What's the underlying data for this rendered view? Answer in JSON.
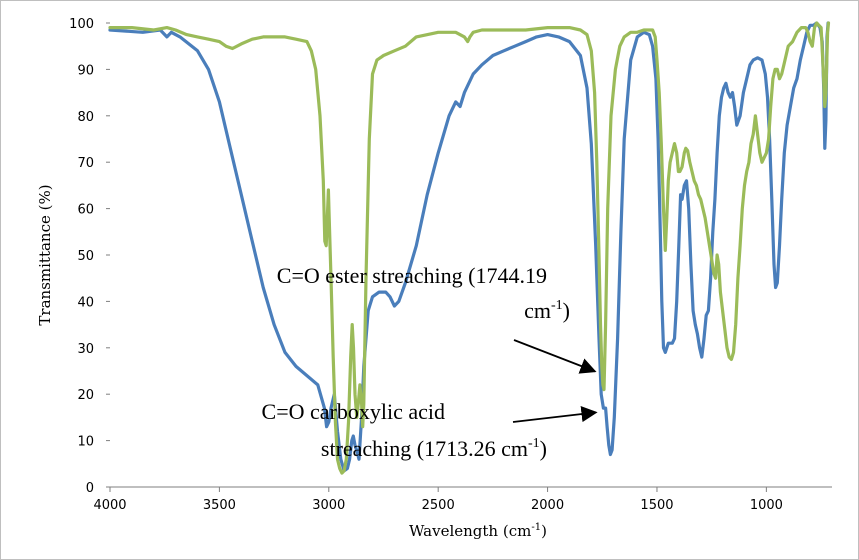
{
  "chart_data": {
    "type": "line",
    "title": "",
    "xlabel": "Wavelength (cm",
    "xlabel_sup": "-1",
    "xlabel_tail": ")",
    "ylabel": "Transmittance (%)",
    "xlim": [
      4000,
      700
    ],
    "ylim": [
      0,
      100
    ],
    "x_ticks": [
      4000,
      3500,
      3000,
      2500,
      2000,
      1500,
      1000
    ],
    "y_ticks": [
      0,
      10,
      20,
      30,
      40,
      50,
      60,
      70,
      80,
      90,
      100
    ],
    "grid": "none",
    "legend": "none",
    "series": [
      {
        "color": "#4a7ebb",
        "points": [
          [
            4000,
            98.5
          ],
          [
            3850,
            98
          ],
          [
            3770,
            98.5
          ],
          [
            3740,
            97
          ],
          [
            3720,
            98
          ],
          [
            3680,
            97
          ],
          [
            3600,
            94
          ],
          [
            3550,
            90
          ],
          [
            3500,
            83
          ],
          [
            3450,
            73
          ],
          [
            3400,
            63
          ],
          [
            3350,
            53
          ],
          [
            3300,
            43
          ],
          [
            3250,
            35
          ],
          [
            3200,
            29
          ],
          [
            3150,
            26
          ],
          [
            3100,
            24
          ],
          [
            3050,
            22
          ],
          [
            3020,
            17
          ],
          [
            3010,
            13
          ],
          [
            3000,
            14
          ],
          [
            2990,
            17
          ],
          [
            2975,
            20
          ],
          [
            2960,
            12
          ],
          [
            2945,
            6
          ],
          [
            2930,
            3.5
          ],
          [
            2915,
            4
          ],
          [
            2905,
            6
          ],
          [
            2895,
            10
          ],
          [
            2888,
            11
          ],
          [
            2880,
            9
          ],
          [
            2870,
            7.5
          ],
          [
            2862,
            6
          ],
          [
            2850,
            15
          ],
          [
            2840,
            26
          ],
          [
            2820,
            38
          ],
          [
            2800,
            41
          ],
          [
            2770,
            42
          ],
          [
            2740,
            42
          ],
          [
            2720,
            41
          ],
          [
            2700,
            39
          ],
          [
            2680,
            40
          ],
          [
            2650,
            44
          ],
          [
            2600,
            52
          ],
          [
            2550,
            63
          ],
          [
            2500,
            72
          ],
          [
            2450,
            80
          ],
          [
            2420,
            83
          ],
          [
            2400,
            82
          ],
          [
            2380,
            85
          ],
          [
            2340,
            89
          ],
          [
            2300,
            91
          ],
          [
            2250,
            93
          ],
          [
            2200,
            94
          ],
          [
            2150,
            95
          ],
          [
            2100,
            96
          ],
          [
            2050,
            97
          ],
          [
            2000,
            97.5
          ],
          [
            1950,
            97
          ],
          [
            1900,
            96
          ],
          [
            1850,
            93
          ],
          [
            1820,
            86
          ],
          [
            1800,
            74
          ],
          [
            1780,
            52
          ],
          [
            1765,
            32
          ],
          [
            1755,
            20
          ],
          [
            1745,
            17
          ],
          [
            1735,
            17
          ],
          [
            1728,
            13
          ],
          [
            1720,
            9
          ],
          [
            1713,
            7
          ],
          [
            1705,
            8
          ],
          [
            1695,
            15
          ],
          [
            1680,
            32
          ],
          [
            1665,
            55
          ],
          [
            1650,
            75
          ],
          [
            1620,
            92
          ],
          [
            1590,
            97
          ],
          [
            1560,
            98
          ],
          [
            1535,
            97.5
          ],
          [
            1520,
            95
          ],
          [
            1505,
            88
          ],
          [
            1495,
            75
          ],
          [
            1485,
            55
          ],
          [
            1478,
            40
          ],
          [
            1470,
            30
          ],
          [
            1462,
            29
          ],
          [
            1455,
            30
          ],
          [
            1448,
            31
          ],
          [
            1440,
            31
          ],
          [
            1430,
            31
          ],
          [
            1420,
            32
          ],
          [
            1410,
            40
          ],
          [
            1400,
            52
          ],
          [
            1392,
            63
          ],
          [
            1385,
            62
          ],
          [
            1375,
            65
          ],
          [
            1365,
            66
          ],
          [
            1355,
            60
          ],
          [
            1345,
            48
          ],
          [
            1335,
            38
          ],
          [
            1325,
            35
          ],
          [
            1315,
            33
          ],
          [
            1305,
            30
          ],
          [
            1295,
            28
          ],
          [
            1285,
            32
          ],
          [
            1275,
            37
          ],
          [
            1265,
            38
          ],
          [
            1255,
            45
          ],
          [
            1245,
            55
          ],
          [
            1235,
            62
          ],
          [
            1225,
            72
          ],
          [
            1215,
            80
          ],
          [
            1205,
            84
          ],
          [
            1195,
            86
          ],
          [
            1185,
            87
          ],
          [
            1175,
            85
          ],
          [
            1165,
            84
          ],
          [
            1155,
            85
          ],
          [
            1145,
            82
          ],
          [
            1135,
            78
          ],
          [
            1120,
            80
          ],
          [
            1105,
            85
          ],
          [
            1090,
            88
          ],
          [
            1075,
            91
          ],
          [
            1060,
            92
          ],
          [
            1040,
            92.5
          ],
          [
            1020,
            92
          ],
          [
            1005,
            89
          ],
          [
            995,
            84
          ],
          [
            985,
            75
          ],
          [
            975,
            62
          ],
          [
            965,
            48
          ],
          [
            958,
            43
          ],
          [
            950,
            44
          ],
          [
            940,
            52
          ],
          [
            930,
            62
          ],
          [
            918,
            72
          ],
          [
            905,
            78
          ],
          [
            890,
            82
          ],
          [
            875,
            86
          ],
          [
            860,
            88
          ],
          [
            845,
            92
          ],
          [
            830,
            95
          ],
          [
            815,
            98
          ],
          [
            800,
            99.5
          ],
          [
            785,
            99.5
          ],
          [
            770,
            100
          ],
          [
            755,
            99
          ],
          [
            745,
            96
          ],
          [
            738,
            86
          ],
          [
            733,
            73
          ],
          [
            728,
            79
          ],
          [
            723,
            97
          ],
          [
            718,
            100
          ]
        ]
      },
      {
        "color": "#9bbb59",
        "points": [
          [
            4000,
            99
          ],
          [
            3900,
            99
          ],
          [
            3800,
            98.5
          ],
          [
            3740,
            99
          ],
          [
            3700,
            98.5
          ],
          [
            3650,
            97.5
          ],
          [
            3600,
            97
          ],
          [
            3550,
            96.5
          ],
          [
            3500,
            96
          ],
          [
            3470,
            95
          ],
          [
            3440,
            94.5
          ],
          [
            3400,
            95.5
          ],
          [
            3350,
            96.5
          ],
          [
            3300,
            97
          ],
          [
            3250,
            97
          ],
          [
            3200,
            97
          ],
          [
            3150,
            96.5
          ],
          [
            3100,
            96
          ],
          [
            3080,
            94
          ],
          [
            3060,
            90
          ],
          [
            3040,
            80
          ],
          [
            3025,
            66
          ],
          [
            3018,
            53
          ],
          [
            3012,
            52
          ],
          [
            3007,
            58
          ],
          [
            3002,
            64
          ],
          [
            2998,
            58
          ],
          [
            2990,
            45
          ],
          [
            2980,
            28
          ],
          [
            2970,
            14
          ],
          [
            2960,
            6
          ],
          [
            2950,
            4
          ],
          [
            2940,
            3
          ],
          [
            2930,
            3.5
          ],
          [
            2920,
            6
          ],
          [
            2910,
            14
          ],
          [
            2900,
            28
          ],
          [
            2893,
            35
          ],
          [
            2887,
            30
          ],
          [
            2880,
            20
          ],
          [
            2872,
            15
          ],
          [
            2865,
            18
          ],
          [
            2858,
            22
          ],
          [
            2850,
            18
          ],
          [
            2845,
            13
          ],
          [
            2840,
            18
          ],
          [
            2830,
            45
          ],
          [
            2815,
            75
          ],
          [
            2800,
            89
          ],
          [
            2780,
            92
          ],
          [
            2750,
            93
          ],
          [
            2700,
            94
          ],
          [
            2650,
            95
          ],
          [
            2600,
            97
          ],
          [
            2500,
            98
          ],
          [
            2420,
            98
          ],
          [
            2380,
            97
          ],
          [
            2365,
            96
          ],
          [
            2355,
            97
          ],
          [
            2340,
            98
          ],
          [
            2300,
            98.5
          ],
          [
            2100,
            98.5
          ],
          [
            2000,
            99
          ],
          [
            1900,
            99
          ],
          [
            1850,
            98.5
          ],
          [
            1820,
            97.5
          ],
          [
            1800,
            94
          ],
          [
            1785,
            85
          ],
          [
            1775,
            70
          ],
          [
            1765,
            50
          ],
          [
            1758,
            35
          ],
          [
            1752,
            26
          ],
          [
            1747,
            22
          ],
          [
            1742,
            21
          ],
          [
            1735,
            35
          ],
          [
            1725,
            60
          ],
          [
            1710,
            80
          ],
          [
            1690,
            90
          ],
          [
            1670,
            95
          ],
          [
            1650,
            97
          ],
          [
            1620,
            98
          ],
          [
            1590,
            98
          ],
          [
            1560,
            98.5
          ],
          [
            1540,
            98.5
          ],
          [
            1520,
            98.5
          ],
          [
            1508,
            97
          ],
          [
            1500,
            92
          ],
          [
            1490,
            85
          ],
          [
            1480,
            74
          ],
          [
            1470,
            60
          ],
          [
            1462,
            51
          ],
          [
            1455,
            58
          ],
          [
            1448,
            66
          ],
          [
            1440,
            70
          ],
          [
            1430,
            72
          ],
          [
            1420,
            74
          ],
          [
            1410,
            72
          ],
          [
            1402,
            68
          ],
          [
            1395,
            68
          ],
          [
            1385,
            69
          ],
          [
            1375,
            72
          ],
          [
            1368,
            73
          ],
          [
            1360,
            72.5
          ],
          [
            1350,
            70
          ],
          [
            1340,
            68
          ],
          [
            1330,
            66
          ],
          [
            1320,
            65
          ],
          [
            1310,
            63
          ],
          [
            1300,
            62
          ],
          [
            1290,
            60
          ],
          [
            1280,
            58
          ],
          [
            1270,
            55
          ],
          [
            1260,
            52
          ],
          [
            1250,
            49
          ],
          [
            1240,
            46
          ],
          [
            1232,
            45
          ],
          [
            1225,
            50
          ],
          [
            1218,
            48
          ],
          [
            1210,
            42
          ],
          [
            1200,
            38
          ],
          [
            1190,
            34
          ],
          [
            1180,
            30
          ],
          [
            1170,
            28
          ],
          [
            1160,
            27.5
          ],
          [
            1150,
            29
          ],
          [
            1140,
            35
          ],
          [
            1130,
            45
          ],
          [
            1120,
            52
          ],
          [
            1110,
            60
          ],
          [
            1100,
            65
          ],
          [
            1090,
            68
          ],
          [
            1080,
            70
          ],
          [
            1070,
            74
          ],
          [
            1060,
            76
          ],
          [
            1050,
            80
          ],
          [
            1040,
            76
          ],
          [
            1030,
            72
          ],
          [
            1020,
            70
          ],
          [
            1010,
            71
          ],
          [
            1000,
            72
          ],
          [
            990,
            75
          ],
          [
            980,
            82
          ],
          [
            970,
            88
          ],
          [
            960,
            90
          ],
          [
            950,
            90
          ],
          [
            940,
            88
          ],
          [
            930,
            89
          ],
          [
            920,
            91
          ],
          [
            900,
            95
          ],
          [
            880,
            96
          ],
          [
            860,
            98
          ],
          [
            840,
            99
          ],
          [
            820,
            99
          ],
          [
            810,
            98
          ],
          [
            800,
            96
          ],
          [
            790,
            95
          ],
          [
            780,
            99
          ],
          [
            770,
            100
          ],
          [
            760,
            99.5
          ],
          [
            750,
            99
          ],
          [
            740,
            90
          ],
          [
            733,
            82
          ],
          [
            728,
            85
          ],
          [
            720,
            98
          ],
          [
            716,
            100
          ]
        ]
      }
    ],
    "annotations": [
      {
        "line1": "C=O ester streaching (1744.19",
        "line2": "cm",
        "line2_sup": "-1",
        "line2_tail": ")",
        "target_x": 1744.19,
        "target_y": 26
      },
      {
        "line1": "C=O carboxylic acid",
        "line2": "streaching (1713.26 cm",
        "line2_sup": "-1",
        "line2_tail": ")",
        "target_x": 1713.26,
        "target_y": 15
      }
    ]
  }
}
